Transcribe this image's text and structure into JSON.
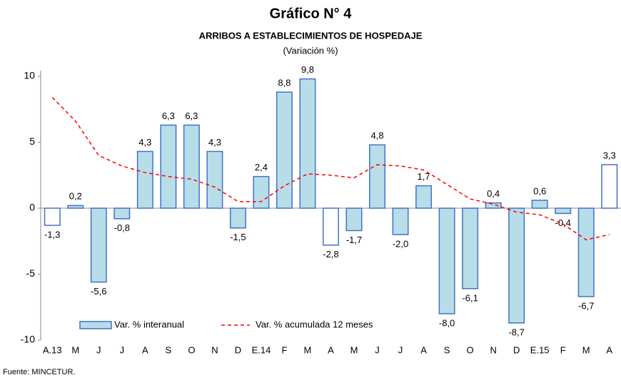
{
  "chart_data": {
    "type": "bar",
    "title": "Gráfico N° 4",
    "subtitle": "ARRIBOS A ESTABLECIMIENTOS DE HOSPEDAJE",
    "y_label": "(Variación %)",
    "source": "Fuente: MINCETUR.",
    "categories": [
      "A.13",
      "M",
      "J",
      "J",
      "A",
      "S",
      "O",
      "N",
      "D",
      "E.14",
      "F",
      "M",
      "A",
      "M",
      "J",
      "J",
      "A",
      "S",
      "O",
      "N",
      "D",
      "E.15",
      "F",
      "M",
      "A"
    ],
    "series": [
      {
        "name": "Var. % interanual",
        "type": "bar",
        "color": "#b7dde8",
        "edgecolor": "#4472c4",
        "colors": [
          "#ffffff",
          "#b7dde8",
          "#b7dde8",
          "#b7dde8",
          "#b7dde8",
          "#b7dde8",
          "#b7dde8",
          "#b7dde8",
          "#b7dde8",
          "#b7dde8",
          "#b7dde8",
          "#b7dde8",
          "#ffffff",
          "#b7dde8",
          "#b7dde8",
          "#b7dde8",
          "#b7dde8",
          "#b7dde8",
          "#b7dde8",
          "#b7dde8",
          "#b7dde8",
          "#b7dde8",
          "#b7dde8",
          "#b7dde8",
          "#ffffff"
        ],
        "values": [
          -1.3,
          0.2,
          -5.6,
          -0.8,
          4.3,
          6.3,
          6.3,
          4.3,
          -1.5,
          2.4,
          8.8,
          9.8,
          -2.8,
          -1.7,
          4.8,
          -2.0,
          1.7,
          -8.0,
          -6.1,
          0.4,
          -8.7,
          0.6,
          -0.4,
          -6.7,
          3.3
        ],
        "value_labels": [
          "-1,3",
          "0,2",
          "-5,6",
          "-0,8",
          "4,3",
          "6,3",
          "6,3",
          "4,3",
          "-1,5",
          "2,4",
          "8,8",
          "9,8",
          "-2,8",
          "-1,7",
          "4,8",
          "-2,0",
          "1,7",
          "-8,0",
          "-6,1",
          "0,4",
          "-8,7",
          "0,6",
          "-0,4",
          "-6,7",
          "3,3"
        ]
      },
      {
        "name": "Var. % acumulada 12 meses",
        "type": "line",
        "color": "#ff0000",
        "dashed": true,
        "values": [
          8.4,
          6.6,
          4.0,
          3.2,
          2.7,
          2.4,
          2.2,
          1.6,
          0.5,
          0.5,
          1.7,
          2.6,
          2.5,
          2.3,
          3.3,
          3.2,
          2.9,
          1.8,
          0.7,
          0.3,
          -0.3,
          -0.5,
          -1.2,
          -2.4,
          -2.0
        ]
      }
    ],
    "ylim": [
      -10,
      10
    ],
    "yticks": [
      -10,
      -5,
      0,
      5,
      10
    ]
  }
}
